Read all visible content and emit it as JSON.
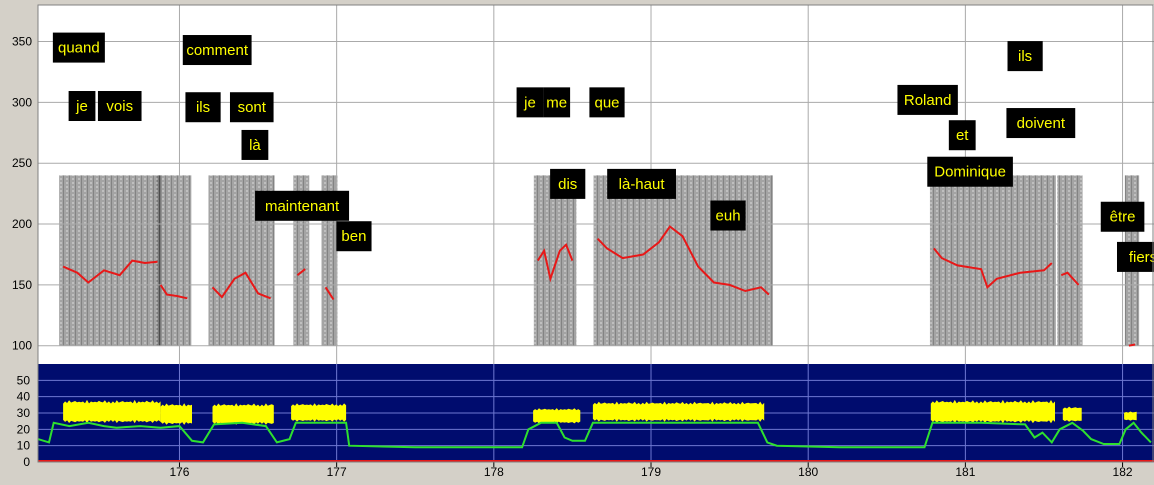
{
  "chart_data": [
    {
      "type": "line",
      "panel": "pitch-spectrogram",
      "title": "",
      "xlabel": "",
      "ylabel": "",
      "xlim": [
        175.1,
        182.2
      ],
      "ylim": [
        85,
        380
      ],
      "y_ticks": [
        100,
        150,
        200,
        250,
        300,
        350
      ],
      "background": "#ffffff",
      "grid": true,
      "colors": {
        "pitch": "#e81818",
        "word_box": "#000000",
        "word_text": "#ffff00",
        "grid": "#aaaaaa"
      },
      "series": [
        {
          "role": "f0-contour",
          "segments": [
            [
              [
                175.26,
                165
              ],
              [
                175.35,
                160
              ],
              [
                175.42,
                152
              ],
              [
                175.52,
                162
              ],
              [
                175.62,
                158
              ],
              [
                175.7,
                170
              ],
              [
                175.78,
                168
              ],
              [
                175.86,
                169
              ]
            ],
            [
              [
                175.88,
                150
              ],
              [
                175.92,
                142
              ],
              [
                175.98,
                141
              ],
              [
                176.05,
                139
              ]
            ],
            [
              [
                176.21,
                148
              ],
              [
                176.27,
                140
              ],
              [
                176.35,
                155
              ],
              [
                176.42,
                160
              ],
              [
                176.5,
                143
              ],
              [
                176.58,
                139
              ]
            ],
            [
              [
                176.75,
                158
              ],
              [
                176.8,
                163
              ]
            ],
            [
              [
                176.93,
                148
              ],
              [
                176.98,
                138
              ]
            ],
            [
              [
                178.28,
                170
              ],
              [
                178.32,
                178
              ],
              [
                178.36,
                155
              ],
              [
                178.42,
                178
              ],
              [
                178.46,
                183
              ],
              [
                178.5,
                170
              ]
            ],
            [
              [
                178.66,
                188
              ],
              [
                178.72,
                180
              ],
              [
                178.82,
                172
              ],
              [
                178.95,
                175
              ],
              [
                179.05,
                185
              ],
              [
                179.12,
                198
              ],
              [
                179.2,
                190
              ],
              [
                179.3,
                165
              ],
              [
                179.4,
                152
              ],
              [
                179.5,
                150
              ],
              [
                179.6,
                145
              ],
              [
                179.7,
                148
              ],
              [
                179.75,
                142
              ]
            ],
            [
              [
                180.8,
                180
              ],
              [
                180.85,
                172
              ],
              [
                180.95,
                166
              ],
              [
                181.1,
                163
              ],
              [
                181.14,
                148
              ],
              [
                181.2,
                155
              ],
              [
                181.35,
                160
              ],
              [
                181.5,
                162
              ],
              [
                181.55,
                168
              ]
            ],
            [
              [
                181.61,
                158
              ],
              [
                181.65,
                160
              ],
              [
                181.72,
                150
              ]
            ],
            [
              [
                182.04,
                100
              ],
              [
                182.08,
                101
              ]
            ]
          ]
        }
      ],
      "annotations": [
        {
          "text": "quand",
          "x": 175.36,
          "y": 345
        },
        {
          "text": "je",
          "x": 175.38,
          "y": 297
        },
        {
          "text": "vois",
          "x": 175.62,
          "y": 297
        },
        {
          "text": "comment",
          "x": 176.24,
          "y": 343
        },
        {
          "text": "ils",
          "x": 176.15,
          "y": 296
        },
        {
          "text": "sont",
          "x": 176.46,
          "y": 296
        },
        {
          "text": "là",
          "x": 176.48,
          "y": 265
        },
        {
          "text": "maintenant",
          "x": 176.78,
          "y": 215
        },
        {
          "text": "ben",
          "x": 177.11,
          "y": 190
        },
        {
          "text": "je",
          "x": 178.23,
          "y": 300
        },
        {
          "text": "me",
          "x": 178.4,
          "y": 300
        },
        {
          "text": "que",
          "x": 178.72,
          "y": 300
        },
        {
          "text": "dis",
          "x": 178.47,
          "y": 233
        },
        {
          "text": "là-haut",
          "x": 178.94,
          "y": 233
        },
        {
          "text": "euh",
          "x": 179.49,
          "y": 207
        },
        {
          "text": "Roland",
          "x": 180.76,
          "y": 302
        },
        {
          "text": "et",
          "x": 180.98,
          "y": 273
        },
        {
          "text": "Dominique",
          "x": 181.03,
          "y": 243
        },
        {
          "text": "ils",
          "x": 181.38,
          "y": 338
        },
        {
          "text": "doivent",
          "x": 181.48,
          "y": 283
        },
        {
          "text": "être",
          "x": 182.0,
          "y": 206
        },
        {
          "text": "fiers",
          "x": 182.13,
          "y": 173
        }
      ]
    },
    {
      "type": "area",
      "panel": "intensity",
      "title": "",
      "xlabel": "",
      "ylabel": "",
      "xlim": [
        175.1,
        182.2
      ],
      "ylim": [
        0,
        60
      ],
      "y_ticks": [
        0,
        10,
        20,
        30,
        40,
        50
      ],
      "x_ticks": [
        176,
        177,
        178,
        179,
        180,
        181,
        182
      ],
      "background": "#000c6e",
      "grid": true,
      "colors": {
        "voiced_band": "#ffff00",
        "intensity": "#2ee02e",
        "baseline": "#e81818",
        "grid": "#6e78d2"
      },
      "series": [
        {
          "role": "voiced-band",
          "segments": [
            {
              "x0": 175.26,
              "x1": 175.88,
              "low": 23,
              "high": 38
            },
            {
              "x0": 175.88,
              "x1": 176.08,
              "low": 22,
              "high": 36
            },
            {
              "x0": 176.21,
              "x1": 176.6,
              "low": 22,
              "high": 36
            },
            {
              "x0": 176.71,
              "x1": 177.06,
              "low": 24,
              "high": 36
            },
            {
              "x0": 178.25,
              "x1": 178.55,
              "low": 23,
              "high": 33
            },
            {
              "x0": 178.63,
              "x1": 179.72,
              "low": 24,
              "high": 37
            },
            {
              "x0": 180.78,
              "x1": 181.57,
              "low": 23,
              "high": 38
            },
            {
              "x0": 181.62,
              "x1": 181.74,
              "low": 24,
              "high": 34
            },
            {
              "x0": 182.01,
              "x1": 182.09,
              "low": 25,
              "high": 31
            }
          ]
        },
        {
          "role": "intensity-line",
          "points": [
            [
              175.1,
              14
            ],
            [
              175.17,
              12
            ],
            [
              175.2,
              24
            ],
            [
              175.3,
              22
            ],
            [
              175.42,
              24
            ],
            [
              175.52,
              22
            ],
            [
              175.6,
              21
            ],
            [
              175.75,
              22
            ],
            [
              175.88,
              21
            ],
            [
              176.0,
              22
            ],
            [
              176.08,
              13
            ],
            [
              176.15,
              12
            ],
            [
              176.22,
              23
            ],
            [
              176.4,
              24
            ],
            [
              176.55,
              22
            ],
            [
              176.62,
              12
            ],
            [
              176.7,
              14
            ],
            [
              176.74,
              24
            ],
            [
              176.9,
              24
            ],
            [
              177.06,
              24
            ],
            [
              177.08,
              10
            ],
            [
              177.5,
              9
            ],
            [
              178.0,
              9
            ],
            [
              178.18,
              9
            ],
            [
              178.22,
              20
            ],
            [
              178.3,
              24
            ],
            [
              178.4,
              24
            ],
            [
              178.45,
              15
            ],
            [
              178.5,
              13
            ],
            [
              178.58,
              13
            ],
            [
              178.63,
              24
            ],
            [
              179.0,
              24
            ],
            [
              179.5,
              24
            ],
            [
              179.68,
              24
            ],
            [
              179.74,
              12
            ],
            [
              179.8,
              10
            ],
            [
              180.2,
              9
            ],
            [
              180.74,
              9
            ],
            [
              180.79,
              24
            ],
            [
              181.1,
              24
            ],
            [
              181.38,
              23
            ],
            [
              181.44,
              15
            ],
            [
              181.49,
              18
            ],
            [
              181.55,
              12
            ],
            [
              181.6,
              20
            ],
            [
              181.68,
              24
            ],
            [
              181.75,
              19
            ],
            [
              181.8,
              14
            ],
            [
              181.88,
              11
            ],
            [
              181.98,
              11
            ],
            [
              182.02,
              20
            ],
            [
              182.07,
              24
            ],
            [
              182.12,
              18
            ],
            [
              182.18,
              12
            ]
          ]
        }
      ]
    }
  ]
}
